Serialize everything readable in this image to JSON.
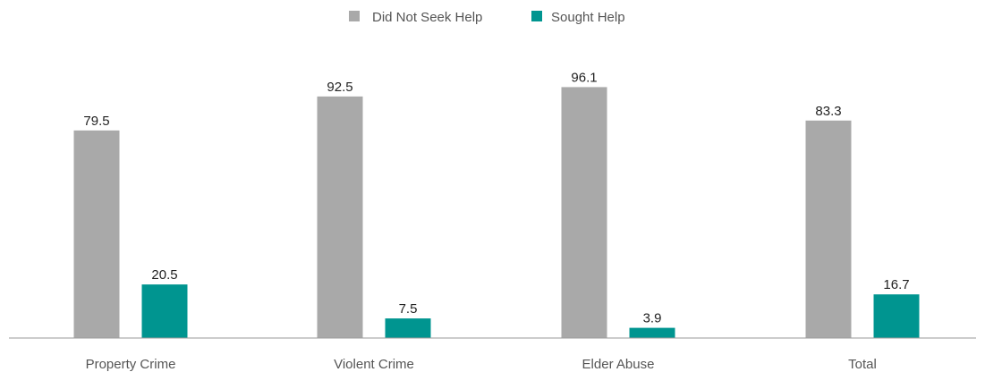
{
  "chart_data": {
    "type": "bar",
    "categories": [
      "Property Crime",
      "Violent Crime",
      "Elder Abuse",
      "Total"
    ],
    "series": [
      {
        "name": "Did Not Seek Help",
        "color": "#a9a9a9",
        "values": [
          79.5,
          92.5,
          96.1,
          83.3
        ]
      },
      {
        "name": "Sought Help",
        "color": "#009590",
        "values": [
          20.5,
          7.5,
          3.9,
          16.7
        ]
      }
    ],
    "ylim": [
      0,
      100
    ],
    "grid": false,
    "legend_position": "top-center",
    "axis_color": "#9a9a9a"
  }
}
